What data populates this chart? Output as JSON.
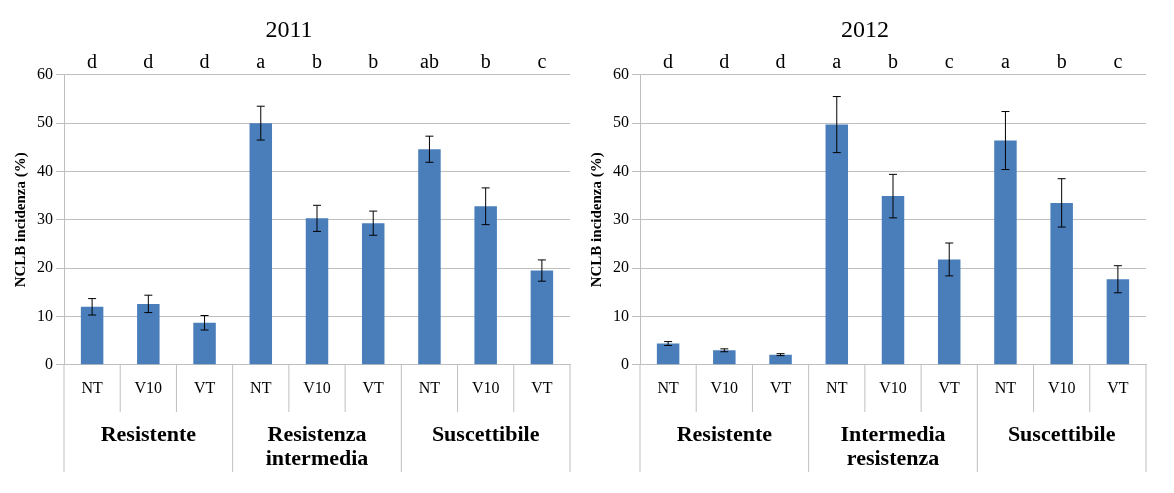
{
  "chart_data": [
    {
      "type": "bar",
      "title": "2011",
      "ylabel": "NCLB incidenza (%)",
      "categories": [
        "NT",
        "V10",
        "VT",
        "NT",
        "V10",
        "VT",
        "NT",
        "V10",
        "VT"
      ],
      "values": [
        12,
        12.6,
        8.7,
        50,
        30.3,
        29.3,
        44.6,
        32.8,
        19.5
      ],
      "errors": [
        1.7,
        1.8,
        1.5,
        3.5,
        2.7,
        2.5,
        2.7,
        3.8,
        2.2
      ],
      "color": "#4a7ebb",
      "ylim": [
        0,
        60
      ],
      "yticks": [
        0,
        10,
        20,
        30,
        40,
        50,
        60
      ],
      "grid": "y",
      "legend": false,
      "annotations": [
        "d",
        "d",
        "d",
        "a",
        "b",
        "b",
        "ab",
        "b",
        "c",
        "Resistente",
        "Resistenza intermedia",
        "Suscettibile"
      ]
    },
    {
      "type": "bar",
      "title": "2012",
      "ylabel": "NCLB incidenza (%)",
      "categories": [
        "NT",
        "V10",
        "VT",
        "NT",
        "V10",
        "VT",
        "NT",
        "V10",
        "VT"
      ],
      "values": [
        4.4,
        3.0,
        2.1,
        49.7,
        34.9,
        21.8,
        46.4,
        33.5,
        17.7
      ],
      "errors": [
        0.4,
        0.3,
        0.2,
        5.8,
        4.5,
        3.4,
        6,
        5,
        2.8
      ],
      "color": "#4a7ebb",
      "ylim": [
        0,
        60
      ],
      "yticks": [
        0,
        10,
        20,
        30,
        40,
        50,
        60
      ],
      "grid": "y",
      "legend": false,
      "annotations": [
        "d",
        "d",
        "d",
        "a",
        "b",
        "c",
        "a",
        "b",
        "c",
        "Resistente",
        "Intermedia resistenza",
        "Suscettibile"
      ]
    }
  ]
}
